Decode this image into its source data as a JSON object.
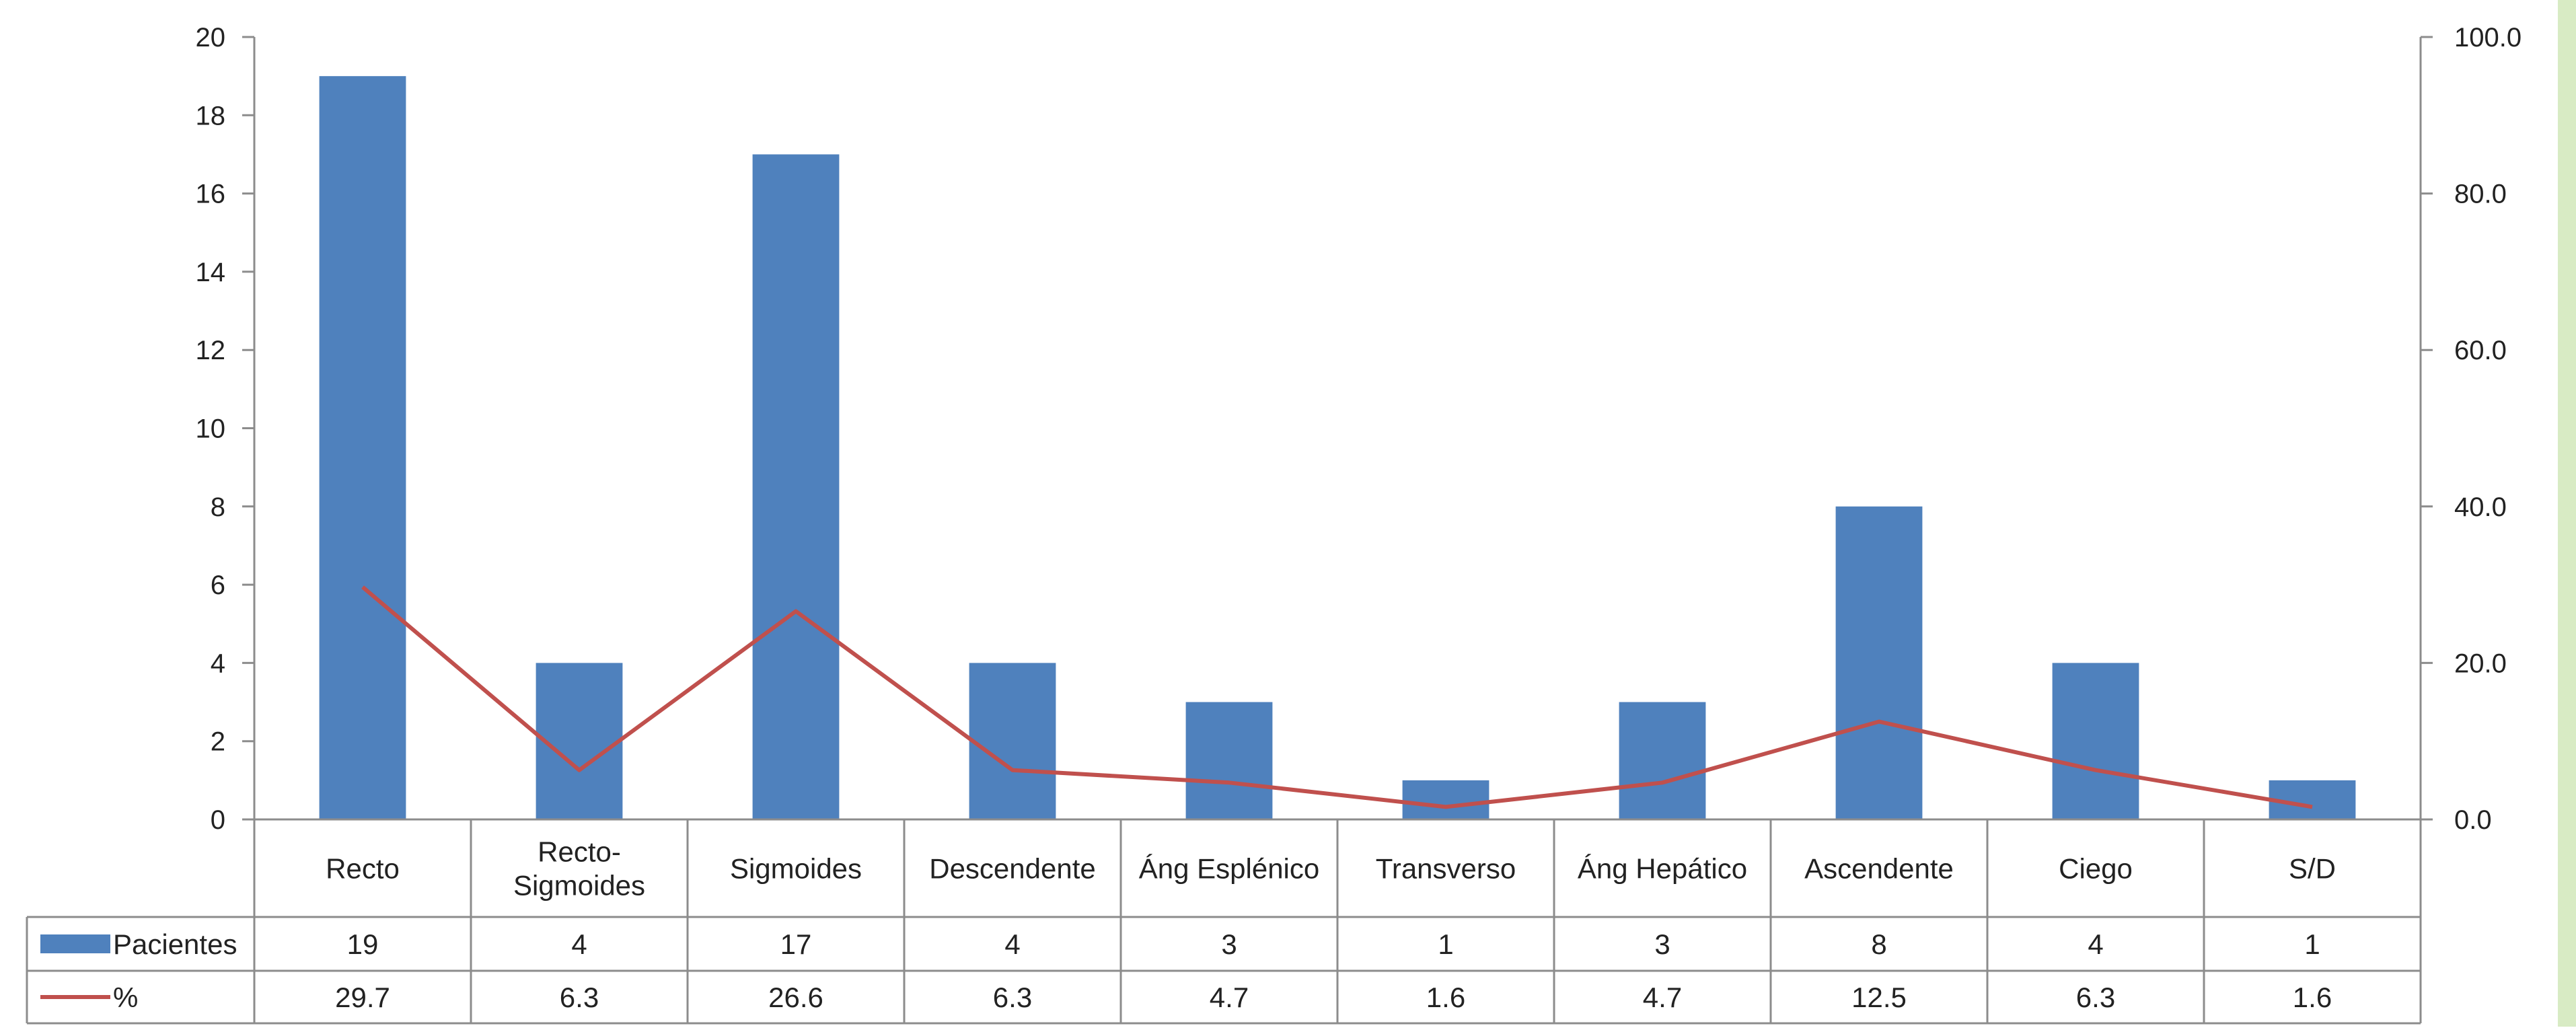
{
  "chart_data": {
    "type": "bar",
    "categories": [
      "Recto",
      "Recto-Sigmoides",
      "Sigmoides",
      "Descendente",
      "Áng Esplénico",
      "Transverso",
      "Áng Hepático",
      "Ascendente",
      "Ciego",
      "S/D"
    ],
    "series": [
      {
        "name": "Pacientes",
        "kind": "bar",
        "axis": "left",
        "color": "#4F81BD",
        "values": [
          19,
          4,
          17,
          4,
          3,
          1,
          3,
          8,
          4,
          1
        ],
        "table_labels": [
          "19",
          "4",
          "17",
          "4",
          "3",
          "1",
          "3",
          "8",
          "4",
          "1"
        ]
      },
      {
        "name": "%",
        "kind": "line",
        "axis": "right",
        "color": "#C0504D",
        "values": [
          29.7,
          6.3,
          26.6,
          6.3,
          4.7,
          1.6,
          4.7,
          12.5,
          6.3,
          1.6
        ],
        "table_labels": [
          "29.7",
          "6.3",
          "26.6",
          "6.3",
          "4.7",
          "1.6",
          "4.7",
          "12.5",
          "6.3",
          "1.6"
        ]
      }
    ],
    "ylim": [
      0,
      20
    ],
    "y2lim": [
      0,
      100
    ],
    "yticks": [
      "0",
      "2",
      "4",
      "6",
      "8",
      "10",
      "12",
      "14",
      "16",
      "18",
      "20"
    ],
    "y2ticks": [
      "0.0",
      "20.0",
      "40.0",
      "60.0",
      "80.0",
      "100.0"
    ],
    "grid": false,
    "legend": "data-table",
    "side_strip_color": "#D8EBC4"
  }
}
